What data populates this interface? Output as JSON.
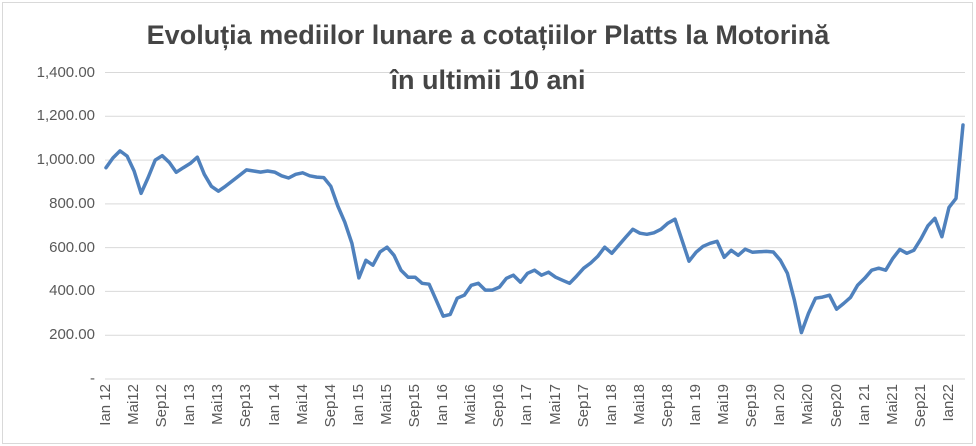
{
  "chart": {
    "title_line1": "Evoluția mediilor lunare a cotațiilor Platts la Motorină",
    "title_line2": "în ultimii 10 ani",
    "colors": {
      "line": "#4F81BD",
      "gridline": "#D9D9D9",
      "title_text": "#454545",
      "axis_text": "#595959",
      "frame_border": "#D9D9D9",
      "background": "#FFFFFF"
    }
  },
  "chart_data": {
    "type": "line",
    "title": "Evoluția mediilor lunare a cotațiilor Platts la Motorină în ultimii 10 ani",
    "xlabel": "",
    "ylabel": "",
    "legend": "none",
    "grid": "horizontal",
    "ylim": [
      0,
      1400
    ],
    "y_tick_values": [
      1400,
      1200,
      1000,
      800,
      600,
      400,
      200,
      0
    ],
    "y_tick_labels": [
      "1,400.00",
      "1,200.00",
      "1,000.00",
      "800.00",
      "600.00",
      "400.00",
      "200.00",
      "-"
    ],
    "x_frequency": "monthly",
    "x_start": "Ian 2012",
    "x_tick_interval_months": 4,
    "x_tick_labels": [
      "Ian 12",
      "Mai12",
      "Sep12",
      "Ian 13",
      "Mai13",
      "Sep13",
      "Ian 14",
      "Mai14",
      "Sep14",
      "Ian 15",
      "Mai15",
      "Sep15",
      "Ian 16",
      "Mai16",
      "Sep16",
      "Ian 17",
      "Mai17",
      "Sep17",
      "Ian 18",
      "Mai18",
      "Sep18",
      "Ian 19",
      "Mai19",
      "Sep19",
      "Ian 20",
      "Mai20",
      "Sep20",
      "Ian 21",
      "Mai21",
      "Sep21",
      "Ian22"
    ],
    "values": [
      965,
      1010,
      1042,
      1018,
      950,
      848,
      920,
      1000,
      1020,
      990,
      944,
      965,
      985,
      1013,
      935,
      880,
      858,
      880,
      905,
      930,
      955,
      950,
      945,
      950,
      945,
      928,
      918,
      935,
      942,
      928,
      922,
      920,
      880,
      790,
      716,
      620,
      462,
      542,
      520,
      580,
      602,
      565,
      497,
      465,
      465,
      437,
      433,
      360,
      287,
      295,
      369,
      383,
      428,
      437,
      406,
      406,
      420,
      460,
      474,
      442,
      483,
      497,
      474,
      488,
      465,
      451,
      437,
      470,
      506,
      530,
      560,
      602,
      574,
      611,
      648,
      684,
      666,
      661,
      668,
      684,
      712,
      730,
      634,
      538,
      579,
      606,
      620,
      629,
      556,
      588,
      565,
      593,
      579,
      581,
      583,
      580,
      542,
      483,
      360,
      212,
      300,
      369,
      374,
      383,
      319,
      345,
      373,
      428,
      460,
      497,
      506,
      497,
      551,
      592,
      574,
      588,
      640,
      700,
      734,
      650,
      784,
      825,
      1160
    ]
  }
}
